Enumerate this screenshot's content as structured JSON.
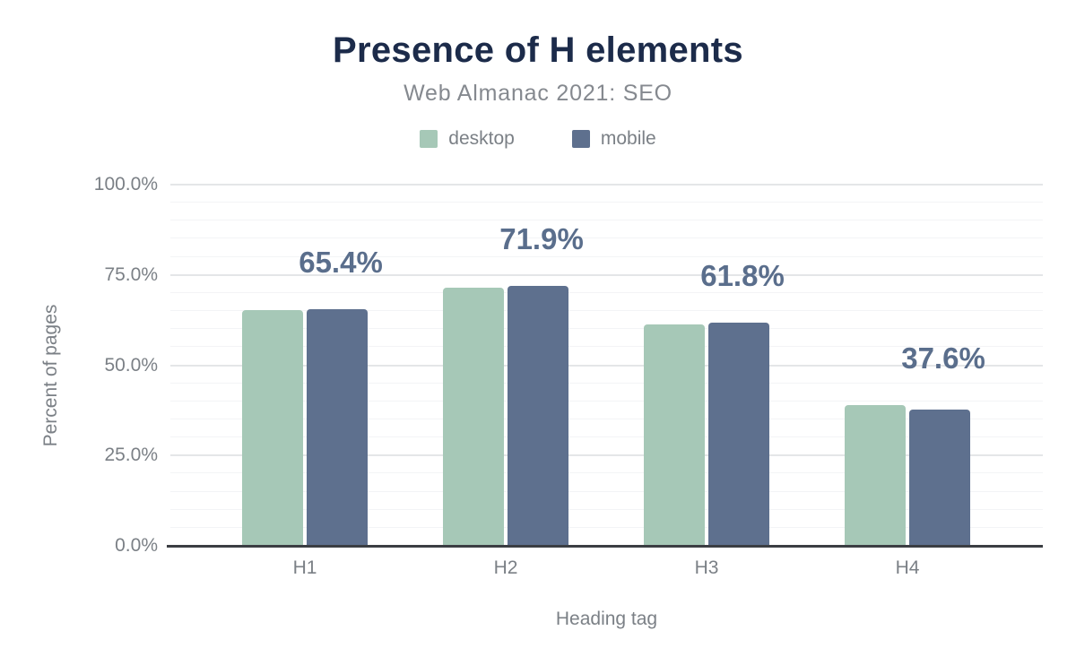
{
  "header": {
    "title": "Presence of H elements",
    "subtitle": "Web Almanac 2021: SEO"
  },
  "chart_data": {
    "type": "bar",
    "title": "Presence of H elements",
    "subtitle": "Web Almanac 2021: SEO",
    "categories": [
      "H1",
      "H2",
      "H3",
      "H4"
    ],
    "series": [
      {
        "name": "desktop",
        "color": "#a6c8b7",
        "values": [
          65.3,
          71.5,
          61.4,
          38.9
        ]
      },
      {
        "name": "mobile",
        "color": "#5e708e",
        "values": [
          65.4,
          71.9,
          61.8,
          37.6
        ]
      }
    ],
    "bar_labels": [
      "65.4%",
      "71.9%",
      "61.8%",
      "37.6%"
    ],
    "bar_labels_series": "mobile",
    "xlabel": "Heading tag",
    "ylabel": "Percent of pages",
    "ylim": [
      0,
      100
    ],
    "y_ticks": [
      "0.0%",
      "25.0%",
      "50.0%",
      "75.0%",
      "100.0%"
    ],
    "y_tick_values": [
      0,
      25,
      50,
      75,
      100
    ],
    "minor_tick_step": 5,
    "grid": true,
    "legend_position": "top"
  },
  "colors": {
    "title": "#1c2b4a",
    "subtitle": "#85898f",
    "tick_text": "#7b8086",
    "value_label": "#5a6e8c",
    "axis_line": "#3b3e43",
    "grid_major": "#e4e6e8",
    "grid_minor": "#f3f4f6",
    "background": "#ffffff"
  }
}
